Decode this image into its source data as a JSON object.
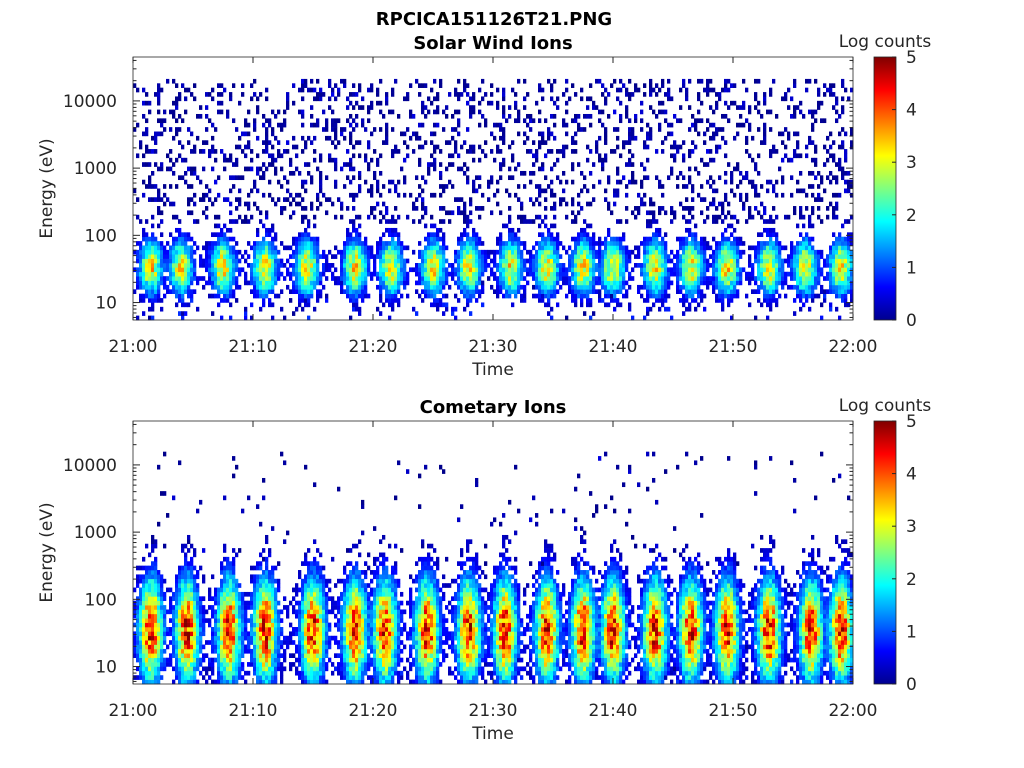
{
  "figure_title": "RPCICA151126T21.PNG",
  "chart_data": [
    {
      "type": "heatmap",
      "title": "Solar Wind Ions",
      "xlabel": "Time",
      "ylabel": "Energy (eV)",
      "x_range": [
        "21:00",
        "22:00"
      ],
      "x_ticks": [
        "21:00",
        "21:10",
        "21:20",
        "21:30",
        "21:40",
        "21:50",
        "22:00"
      ],
      "y_scale": "log",
      "y_range": [
        5.5,
        45000
      ],
      "y_ticks": [
        "10",
        "100",
        "1000",
        "10000"
      ],
      "y_tick_values": [
        10,
        100,
        1000,
        10000
      ],
      "colorbar": {
        "label": "Log counts",
        "min": 0,
        "max": 5,
        "ticks": [
          "0",
          "1",
          "2",
          "3",
          "4",
          "5"
        ],
        "colormap": "jet"
      },
      "burst_times_min": [
        1.5,
        4,
        7.5,
        11,
        14.5,
        18.5,
        21.5,
        25,
        28,
        31.5,
        34.5,
        37.5,
        40,
        43.5,
        46.5,
        49.5,
        53,
        56,
        59
      ],
      "burst_peak_log_counts": 2.8,
      "background_log_counts": 0.3,
      "core_energy_ev": [
        25,
        45
      ],
      "background_energy_ev": [
        150,
        20000
      ]
    },
    {
      "type": "heatmap",
      "title": "Cometary Ions",
      "xlabel": "Time",
      "ylabel": "Energy (eV)",
      "x_range": [
        "21:00",
        "22:00"
      ],
      "x_ticks": [
        "21:00",
        "21:10",
        "21:20",
        "21:30",
        "21:40",
        "21:50",
        "22:00"
      ],
      "y_scale": "log",
      "y_range": [
        5.5,
        45000
      ],
      "y_ticks": [
        "10",
        "100",
        "1000",
        "10000"
      ],
      "y_tick_values": [
        10,
        100,
        1000,
        10000
      ],
      "colorbar": {
        "label": "Log counts",
        "min": 0,
        "max": 5,
        "ticks": [
          "0",
          "1",
          "2",
          "3",
          "4",
          "5"
        ],
        "colormap": "jet"
      },
      "burst_times_min": [
        1.5,
        4.5,
        8,
        11,
        15,
        18.5,
        21,
        24.5,
        28,
        31,
        34.5,
        37.5,
        40,
        43.5,
        46.5,
        49.5,
        53,
        56.5,
        59
      ],
      "burst_peak_log_counts": 3.9,
      "background_log_counts": 0.3,
      "core_energy_ev": [
        20,
        60
      ],
      "background_energy_ev": [
        300,
        15000
      ]
    }
  ],
  "colors": {
    "axis": "#262626",
    "background": "#ffffff"
  }
}
